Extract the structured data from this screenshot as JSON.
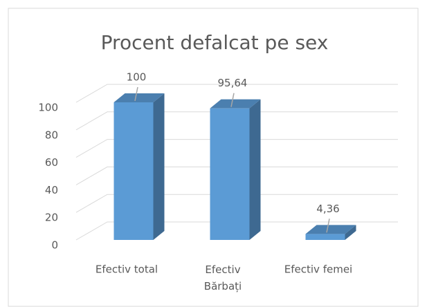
{
  "chart_data": {
    "type": "bar",
    "title": "Procent defalcat pe sex",
    "categories": [
      "Efectiv total",
      "Efectiv Bărbați",
      "Efectiv femei"
    ],
    "values": [
      100,
      95.64,
      4.36
    ],
    "value_labels": [
      "100",
      "95,64",
      "4,36"
    ],
    "color": "#5b9bd5",
    "ylim": [
      0,
      100
    ],
    "yticks": [
      0,
      20,
      40,
      60,
      80,
      100
    ],
    "grid": true
  }
}
